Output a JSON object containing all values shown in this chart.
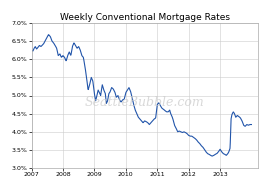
{
  "title": "Weekly Conventional Mortgage Rates",
  "watermark": "SeattleBubble.com",
  "line_color": "#2255aa",
  "background_color": "#ffffff",
  "grid_color": "#cccccc",
  "ylim": [
    3.0,
    7.0
  ],
  "yticks": [
    3.0,
    3.5,
    4.0,
    4.5,
    5.0,
    5.5,
    6.0,
    6.5,
    7.0
  ],
  "xtick_labels": [
    "2007",
    "2008",
    "2009",
    "2010",
    "2011",
    "2012",
    "2013"
  ],
  "xlim_start": 2007.0,
  "xlim_end": 2014.2,
  "key_points": [
    [
      2007.0,
      6.25
    ],
    [
      2007.04,
      6.22
    ],
    [
      2007.08,
      6.3
    ],
    [
      2007.12,
      6.35
    ],
    [
      2007.16,
      6.28
    ],
    [
      2007.2,
      6.32
    ],
    [
      2007.25,
      6.38
    ],
    [
      2007.3,
      6.35
    ],
    [
      2007.38,
      6.42
    ],
    [
      2007.46,
      6.55
    ],
    [
      2007.54,
      6.68
    ],
    [
      2007.6,
      6.62
    ],
    [
      2007.65,
      6.5
    ],
    [
      2007.7,
      6.45
    ],
    [
      2007.75,
      6.38
    ],
    [
      2007.8,
      6.3
    ],
    [
      2007.85,
      6.1
    ],
    [
      2007.9,
      6.15
    ],
    [
      2007.95,
      6.05
    ],
    [
      2008.0,
      6.1
    ],
    [
      2008.05,
      6.05
    ],
    [
      2008.1,
      5.95
    ],
    [
      2008.15,
      6.1
    ],
    [
      2008.2,
      6.2
    ],
    [
      2008.25,
      6.1
    ],
    [
      2008.3,
      6.35
    ],
    [
      2008.35,
      6.45
    ],
    [
      2008.4,
      6.38
    ],
    [
      2008.45,
      6.3
    ],
    [
      2008.5,
      6.35
    ],
    [
      2008.55,
      6.25
    ],
    [
      2008.6,
      6.1
    ],
    [
      2008.65,
      6.05
    ],
    [
      2008.7,
      5.8
    ],
    [
      2008.75,
      5.5
    ],
    [
      2008.8,
      5.15
    ],
    [
      2008.85,
      5.3
    ],
    [
      2008.9,
      5.5
    ],
    [
      2008.95,
      5.4
    ],
    [
      2009.0,
      5.05
    ],
    [
      2009.04,
      4.85
    ],
    [
      2009.08,
      5.0
    ],
    [
      2009.12,
      5.15
    ],
    [
      2009.16,
      5.08
    ],
    [
      2009.2,
      5.0
    ],
    [
      2009.25,
      5.3
    ],
    [
      2009.3,
      5.15
    ],
    [
      2009.35,
      5.05
    ],
    [
      2009.38,
      4.78
    ],
    [
      2009.42,
      4.85
    ],
    [
      2009.46,
      5.05
    ],
    [
      2009.5,
      5.1
    ],
    [
      2009.55,
      5.22
    ],
    [
      2009.6,
      5.18
    ],
    [
      2009.65,
      5.1
    ],
    [
      2009.7,
      4.95
    ],
    [
      2009.75,
      5.0
    ],
    [
      2009.8,
      4.88
    ],
    [
      2009.85,
      4.82
    ],
    [
      2009.9,
      4.88
    ],
    [
      2009.95,
      4.9
    ],
    [
      2010.0,
      5.08
    ],
    [
      2010.05,
      5.15
    ],
    [
      2010.1,
      5.22
    ],
    [
      2010.15,
      5.12
    ],
    [
      2010.2,
      4.95
    ],
    [
      2010.25,
      4.75
    ],
    [
      2010.3,
      4.6
    ],
    [
      2010.35,
      4.5
    ],
    [
      2010.4,
      4.4
    ],
    [
      2010.45,
      4.35
    ],
    [
      2010.5,
      4.3
    ],
    [
      2010.55,
      4.25
    ],
    [
      2010.6,
      4.3
    ],
    [
      2010.65,
      4.28
    ],
    [
      2010.7,
      4.25
    ],
    [
      2010.75,
      4.2
    ],
    [
      2010.8,
      4.25
    ],
    [
      2010.85,
      4.3
    ],
    [
      2010.9,
      4.35
    ],
    [
      2010.95,
      4.38
    ],
    [
      2011.0,
      4.75
    ],
    [
      2011.05,
      4.8
    ],
    [
      2011.1,
      4.72
    ],
    [
      2011.15,
      4.65
    ],
    [
      2011.2,
      4.62
    ],
    [
      2011.25,
      4.58
    ],
    [
      2011.3,
      4.55
    ],
    [
      2011.35,
      4.55
    ],
    [
      2011.4,
      4.6
    ],
    [
      2011.42,
      4.52
    ],
    [
      2011.44,
      4.48
    ],
    [
      2011.46,
      4.45
    ],
    [
      2011.5,
      4.35
    ],
    [
      2011.55,
      4.18
    ],
    [
      2011.6,
      4.1
    ],
    [
      2011.65,
      4.0
    ],
    [
      2011.7,
      4.02
    ],
    [
      2011.75,
      4.0
    ],
    [
      2011.8,
      3.98
    ],
    [
      2011.85,
      4.0
    ],
    [
      2011.9,
      3.98
    ],
    [
      2011.95,
      3.95
    ],
    [
      2012.0,
      3.9
    ],
    [
      2012.05,
      3.88
    ],
    [
      2012.1,
      3.88
    ],
    [
      2012.15,
      3.85
    ],
    [
      2012.2,
      3.82
    ],
    [
      2012.25,
      3.78
    ],
    [
      2012.3,
      3.72
    ],
    [
      2012.35,
      3.68
    ],
    [
      2012.4,
      3.62
    ],
    [
      2012.45,
      3.58
    ],
    [
      2012.5,
      3.52
    ],
    [
      2012.55,
      3.45
    ],
    [
      2012.6,
      3.4
    ],
    [
      2012.65,
      3.38
    ],
    [
      2012.7,
      3.35
    ],
    [
      2012.75,
      3.33
    ],
    [
      2012.8,
      3.35
    ],
    [
      2012.85,
      3.38
    ],
    [
      2012.9,
      3.4
    ],
    [
      2012.95,
      3.45
    ],
    [
      2013.0,
      3.52
    ],
    [
      2013.05,
      3.45
    ],
    [
      2013.1,
      3.4
    ],
    [
      2013.15,
      3.38
    ],
    [
      2013.2,
      3.35
    ],
    [
      2013.25,
      3.4
    ],
    [
      2013.28,
      3.45
    ],
    [
      2013.32,
      3.55
    ],
    [
      2013.35,
      4.35
    ],
    [
      2013.38,
      4.48
    ],
    [
      2013.42,
      4.55
    ],
    [
      2013.46,
      4.5
    ],
    [
      2013.5,
      4.4
    ],
    [
      2013.55,
      4.45
    ],
    [
      2013.6,
      4.42
    ],
    [
      2013.65,
      4.38
    ],
    [
      2013.7,
      4.3
    ],
    [
      2013.75,
      4.18
    ],
    [
      2013.8,
      4.15
    ],
    [
      2013.85,
      4.2
    ],
    [
      2013.9,
      4.18
    ],
    [
      2013.95,
      4.2
    ],
    [
      2014.0,
      4.2
    ]
  ]
}
